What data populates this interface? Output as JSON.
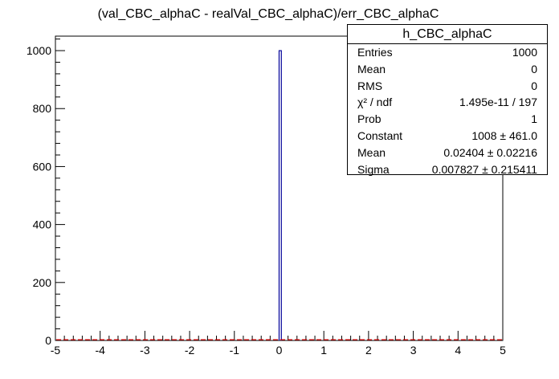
{
  "chart_data": {
    "type": "bar",
    "title": "(val_CBC_alphaC - realVal_CBC_alphaC)/err_CBC_alphaC",
    "xlabel": "",
    "ylabel": "",
    "xlim": [
      -5,
      5
    ],
    "ylim": [
      0,
      1050
    ],
    "x_ticks": [
      "-5",
      "-4",
      "-3",
      "-2",
      "-1",
      "0",
      "1",
      "2",
      "3",
      "4",
      "5"
    ],
    "y_ticks": [
      "0",
      "200",
      "400",
      "600",
      "800",
      "1000"
    ],
    "bins": 200,
    "bars": [
      {
        "x_low": 0.0,
        "x_high": 0.05,
        "value": 1000
      }
    ],
    "fit_line_value": 0,
    "colors": {
      "histogram": "#000099",
      "fit": "#ff0000",
      "axes": "#000000"
    }
  },
  "stats": {
    "title": "h_CBC_alphaC",
    "rows": [
      {
        "label": "Entries",
        "value": "1000"
      },
      {
        "label": "Mean",
        "value": "0"
      },
      {
        "label": "RMS",
        "value": "0"
      },
      {
        "label": "χ² / ndf",
        "value": "1.495e-11 / 197"
      },
      {
        "label": "Prob",
        "value": "1"
      },
      {
        "label": "Constant",
        "value": "1008 ± 461.0"
      },
      {
        "label": "Mean",
        "value": "0.02404 ± 0.02216"
      },
      {
        "label": "Sigma",
        "value": "0.007827 ± 0.215411"
      }
    ]
  }
}
